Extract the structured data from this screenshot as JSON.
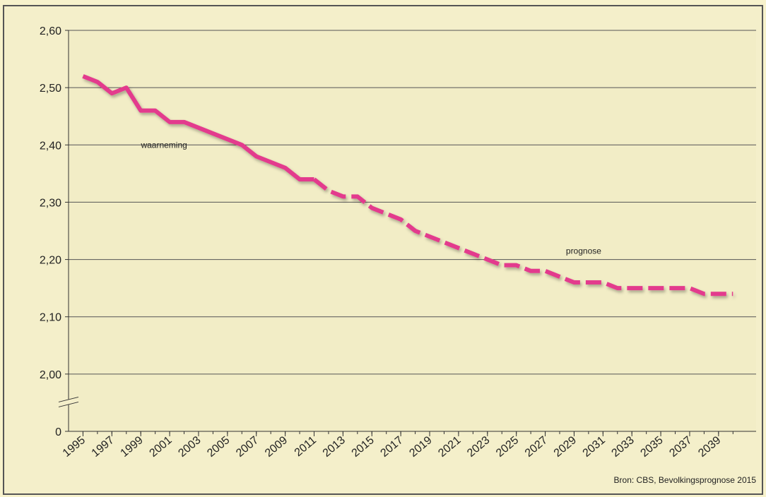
{
  "chart_data": {
    "type": "line",
    "source": "Bron: CBS, Bevolkingsprognose 2015",
    "x": [
      1995,
      1996,
      1997,
      1998,
      1999,
      2000,
      2001,
      2002,
      2003,
      2004,
      2005,
      2006,
      2007,
      2008,
      2009,
      2010,
      2011,
      2012,
      2013,
      2014,
      2015,
      2016,
      2017,
      2018,
      2019,
      2020,
      2021,
      2022,
      2023,
      2024,
      2025,
      2026,
      2027,
      2028,
      2029,
      2030,
      2031,
      2032,
      2033,
      2034,
      2035,
      2036,
      2037,
      2038,
      2039,
      2040
    ],
    "series": [
      {
        "name": "waarneming",
        "color": "#e33b8d",
        "dashed": false,
        "values": [
          2.52,
          2.51,
          2.49,
          2.5,
          2.46,
          2.46,
          2.44,
          2.44,
          2.43,
          2.42,
          2.41,
          2.4,
          2.38,
          2.37,
          2.36,
          2.34,
          2.34,
          null,
          null,
          null,
          null,
          null,
          null,
          null,
          null,
          null,
          null,
          null,
          null,
          null,
          null,
          null,
          null,
          null,
          null,
          null,
          null,
          null,
          null,
          null,
          null,
          null,
          null,
          null,
          null,
          null
        ]
      },
      {
        "name": "prognose",
        "color": "#e33b8d",
        "dashed": true,
        "values": [
          null,
          null,
          null,
          null,
          null,
          null,
          null,
          null,
          null,
          null,
          null,
          null,
          null,
          null,
          null,
          null,
          2.34,
          2.32,
          2.31,
          2.31,
          2.29,
          2.28,
          2.27,
          2.25,
          2.24,
          2.23,
          2.22,
          2.21,
          2.2,
          2.19,
          2.19,
          2.18,
          2.18,
          2.17,
          2.16,
          2.16,
          2.16,
          2.15,
          2.15,
          2.15,
          2.15,
          2.15,
          2.15,
          2.14,
          2.14,
          2.14
        ]
      }
    ],
    "xlim": [
      1994,
      2041.6
    ],
    "xticks": [
      1995,
      1997,
      1999,
      2001,
      2003,
      2005,
      2007,
      2009,
      2011,
      2013,
      2015,
      2017,
      2019,
      2021,
      2023,
      2025,
      2027,
      2029,
      2031,
      2033,
      2035,
      2037,
      2039
    ],
    "ylim": [
      0,
      2.6
    ],
    "ybreak": [
      0,
      1.9
    ],
    "yticks": [
      0,
      {
        "value": 2.0,
        "label": "2,00"
      },
      {
        "value": 2.1,
        "label": "2,10"
      },
      {
        "value": 2.2,
        "label": "2,20"
      },
      {
        "value": 2.3,
        "label": "2,30"
      },
      {
        "value": 2.4,
        "label": "2,40"
      },
      {
        "value": 2.5,
        "label": "2,50"
      },
      {
        "value": 2.6,
        "label": "2,60"
      }
    ],
    "grid": true
  }
}
